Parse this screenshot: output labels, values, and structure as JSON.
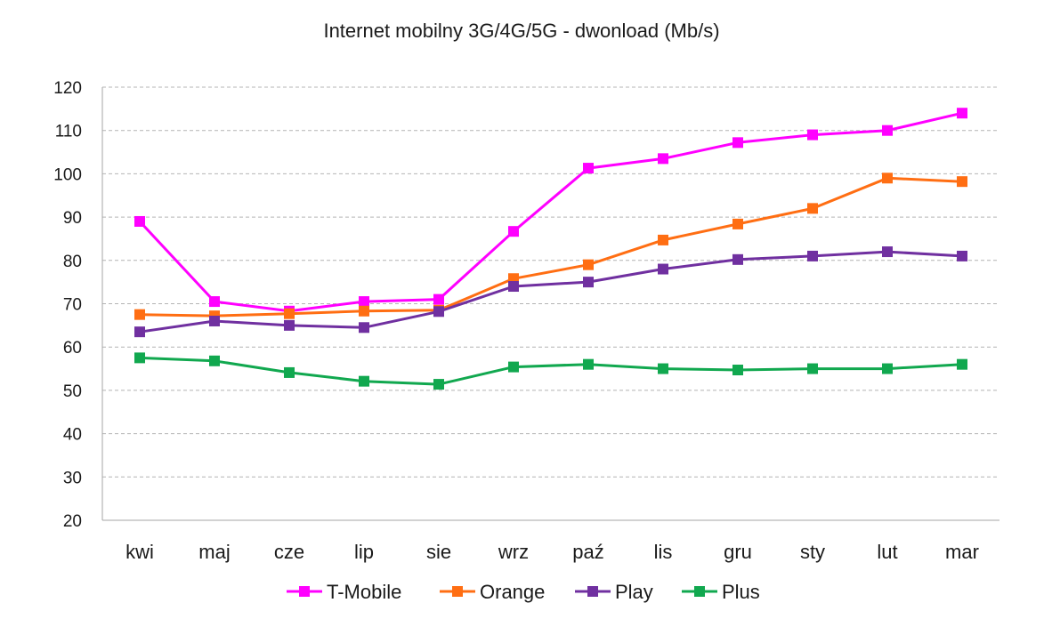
{
  "chart_data": {
    "type": "line",
    "title": "Internet mobilny 3G/4G/5G - dwonload (Mb/s)",
    "xlabel": "",
    "ylabel": "",
    "ylim": [
      20,
      120
    ],
    "yticks": [
      20,
      30,
      40,
      50,
      60,
      70,
      80,
      90,
      100,
      110,
      120
    ],
    "grid": true,
    "legend_position": "bottom",
    "categories": [
      "kwi",
      "maj",
      "cze",
      "lip",
      "sie",
      "wrz",
      "paź",
      "lis",
      "gru",
      "sty",
      "lut",
      "mar"
    ],
    "series": [
      {
        "name": "T-Mobile",
        "color": "#ff00ff",
        "values": [
          89,
          70.5,
          68.3,
          70.5,
          71,
          86.7,
          101.3,
          103.5,
          107.2,
          109,
          110,
          114
        ]
      },
      {
        "name": "Orange",
        "color": "#ff6e13",
        "values": [
          67.5,
          67.2,
          67.7,
          68.3,
          68.5,
          75.8,
          79,
          84.7,
          88.4,
          92,
          99,
          98.2
        ]
      },
      {
        "name": "Play",
        "color": "#7030a0",
        "values": [
          63.5,
          66,
          65,
          64.5,
          68.2,
          74,
          75,
          78,
          80.2,
          81,
          82,
          81
        ]
      },
      {
        "name": "Plus",
        "color": "#11a84f",
        "values": [
          57.5,
          56.8,
          54.1,
          52.1,
          51.4,
          55.4,
          56,
          55,
          54.7,
          55,
          55,
          56
        ]
      }
    ]
  }
}
